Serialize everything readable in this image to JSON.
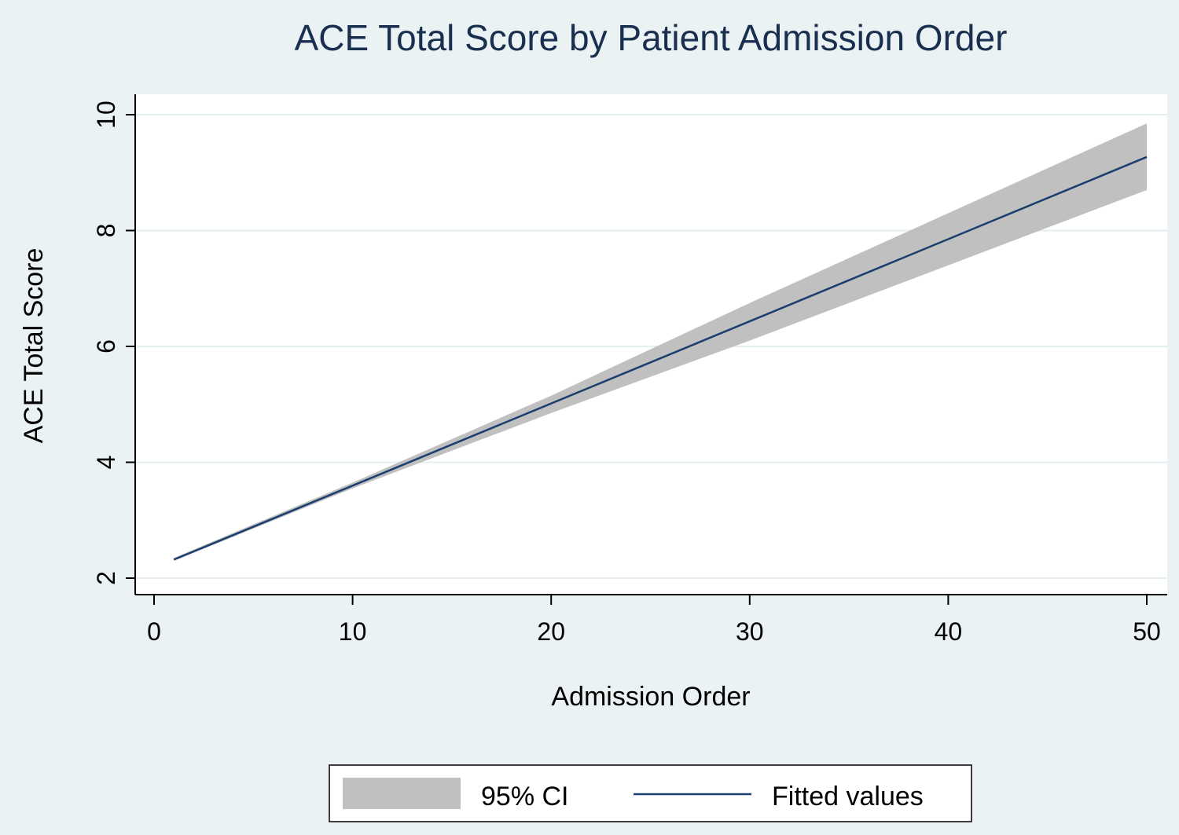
{
  "chart_data": {
    "type": "line",
    "title": "ACE Total Score by Patient Admission Order",
    "xlabel": "Admission Order",
    "ylabel": "ACE Total Score",
    "xlim": [
      0,
      50
    ],
    "ylim": [
      2,
      10
    ],
    "x_ticks": [
      0,
      10,
      20,
      30,
      40,
      50
    ],
    "y_ticks": [
      2,
      4,
      6,
      8,
      10
    ],
    "grid": "horizontal",
    "legend_position": "bottom",
    "colors": {
      "background": "#eaf2f3",
      "plot_background": "#ffffff",
      "gridline": "#e4eef0",
      "ci_band": "#c0c0c0",
      "fitted_line": "#1a3e6e",
      "title": "#1a2f4f"
    },
    "series": [
      {
        "name": "95% CI",
        "kind": "band",
        "x": [
          1,
          10,
          20,
          30,
          40,
          50
        ],
        "lower": [
          2.3,
          3.55,
          4.85,
          6.1,
          7.4,
          8.7
        ],
        "upper": [
          2.35,
          3.65,
          5.15,
          6.75,
          8.3,
          9.85
        ]
      },
      {
        "name": "Fitted values",
        "kind": "line",
        "x": [
          1,
          50
        ],
        "y": [
          2.32,
          9.27
        ]
      }
    ]
  }
}
